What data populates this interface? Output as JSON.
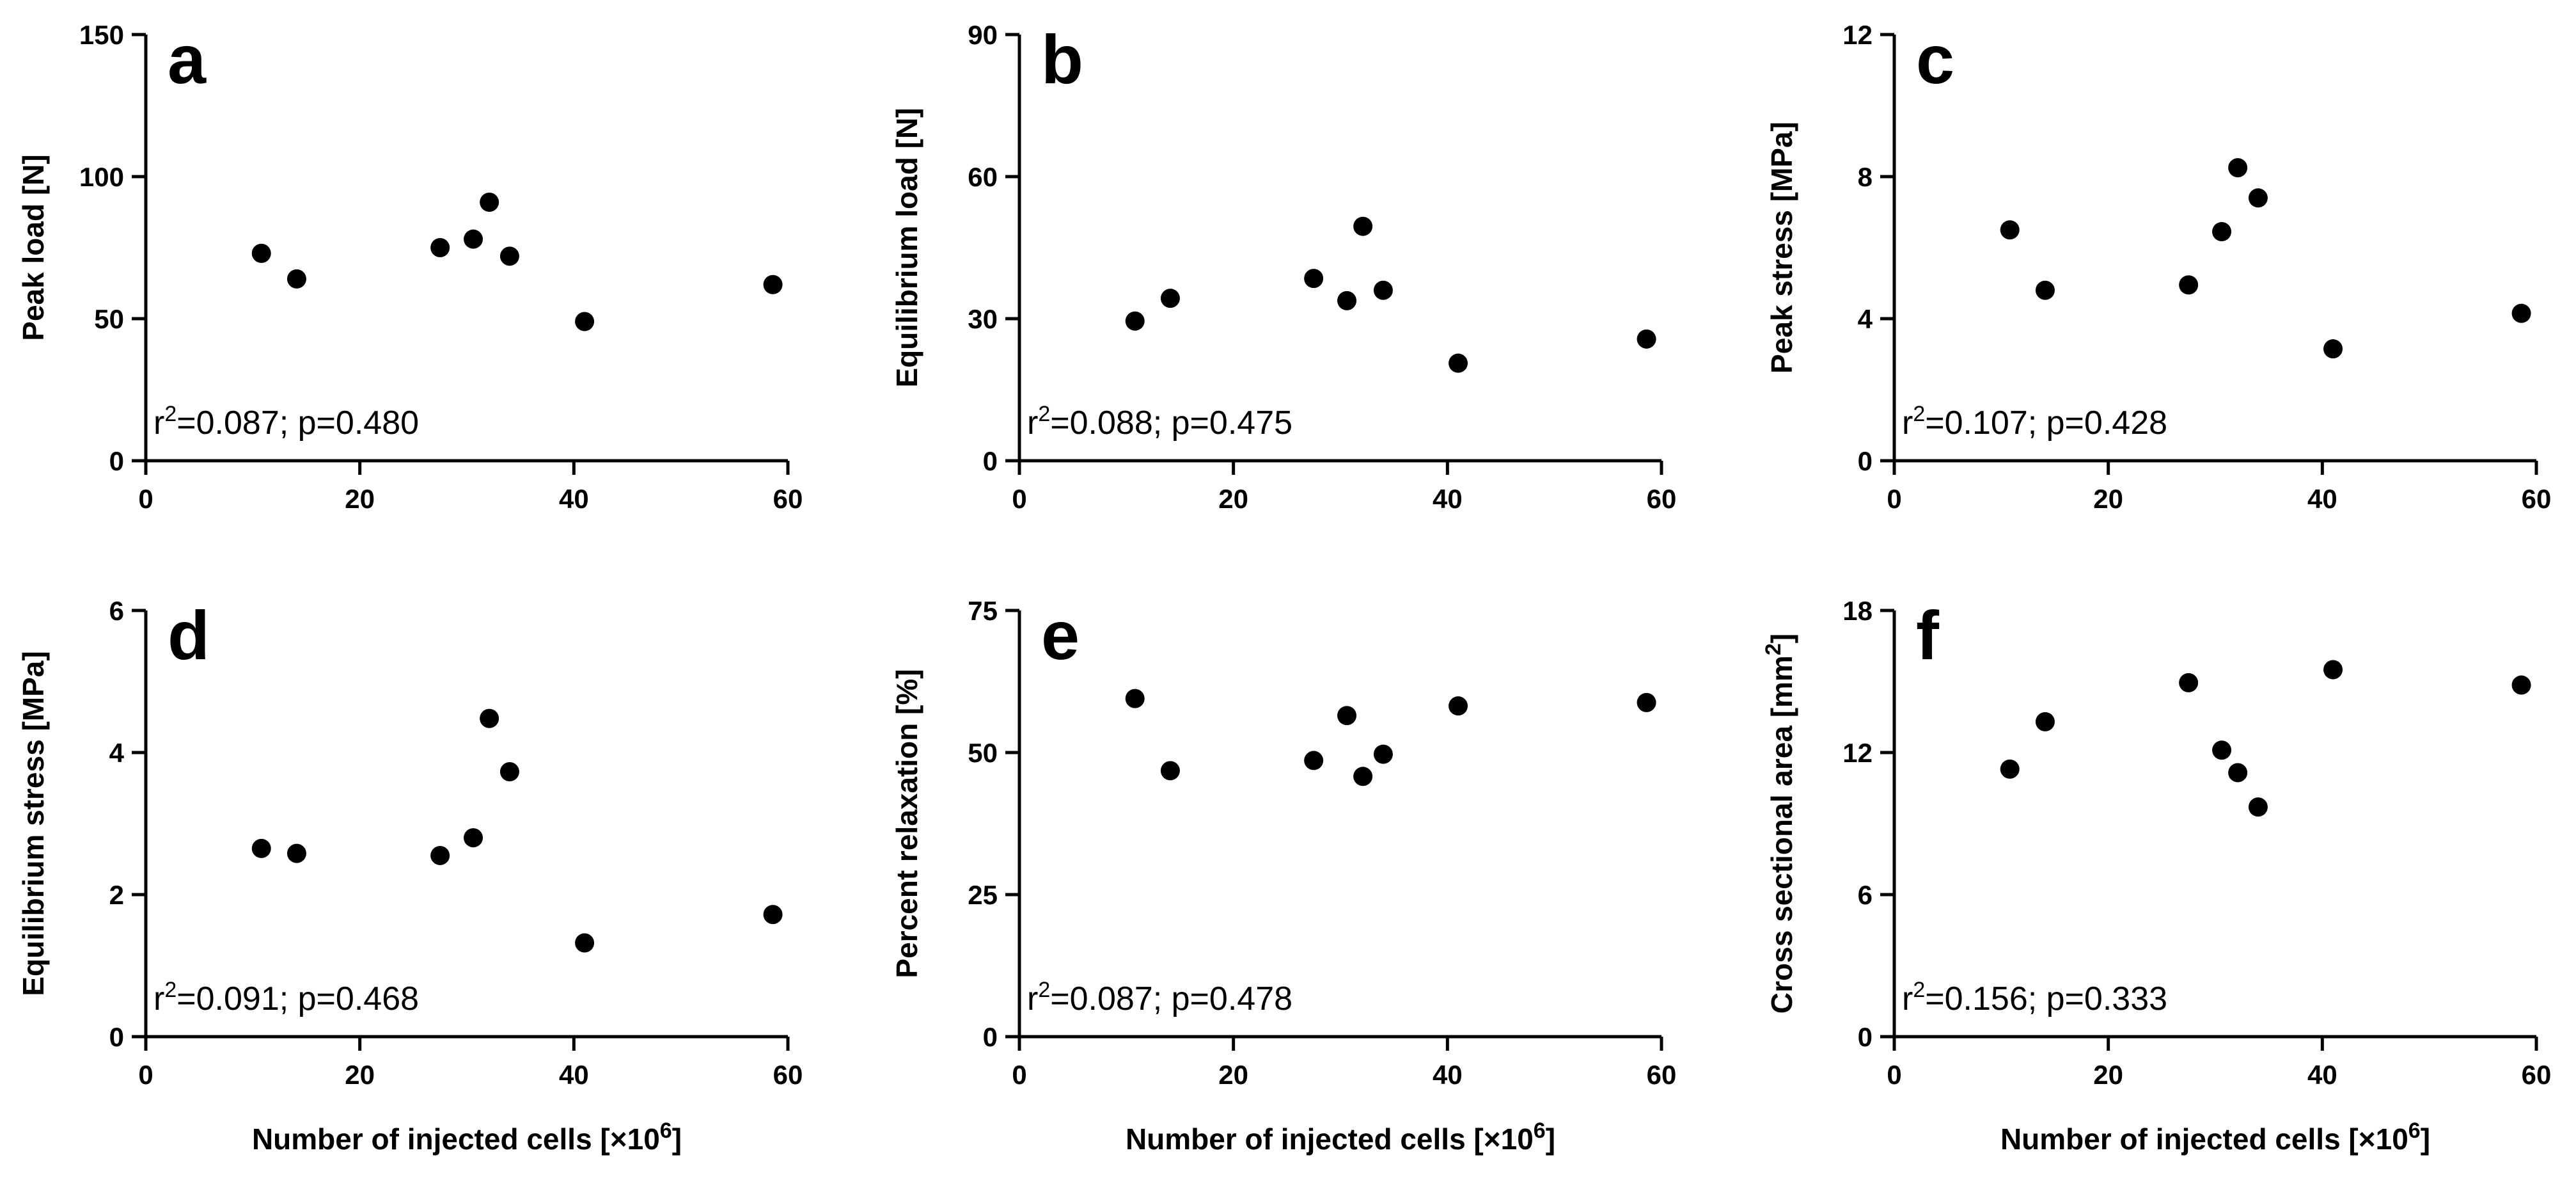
{
  "colors": {
    "background": "#ffffff",
    "ink": "#000000",
    "marker": "#000000"
  },
  "chart_data": [
    {
      "type": "scatter",
      "panel": "a",
      "ylabel": "Peak load [N]",
      "xlabel_text": "Number of injected cells [×10",
      "xlabel_sup": "6",
      "xlabel_tail": "]",
      "xlim": [
        0,
        60
      ],
      "xticks": [
        "0",
        "20",
        "40",
        "60"
      ],
      "ylim": [
        0,
        150
      ],
      "yticks": [
        "0",
        "50",
        "100",
        "150"
      ],
      "x": [
        10.8,
        14.1,
        27.5,
        30.6,
        32.1,
        34.0,
        41.0,
        58.6
      ],
      "y": [
        73,
        64,
        75,
        78,
        91,
        72,
        49,
        62
      ],
      "stat_r": "r",
      "stat_sup": "2",
      "stat_rest": "=0.087; p=0.480"
    },
    {
      "type": "scatter",
      "panel": "b",
      "ylabel": "Equilibrium load [N]",
      "xlabel_text": "Number of injected cells [×10",
      "xlabel_sup": "6",
      "xlabel_tail": "]",
      "xlim": [
        0,
        60
      ],
      "xticks": [
        "0",
        "20",
        "40",
        "60"
      ],
      "ylim": [
        0,
        90
      ],
      "yticks": [
        "0",
        "30",
        "60",
        "90"
      ],
      "x": [
        10.8,
        14.1,
        27.5,
        30.6,
        32.1,
        34.0,
        41.0,
        58.6
      ],
      "y": [
        29.5,
        34.3,
        38.5,
        33.8,
        49.5,
        36.0,
        20.6,
        25.7
      ],
      "stat_r": "r",
      "stat_sup": "2",
      "stat_rest": "=0.088; p=0.475"
    },
    {
      "type": "scatter",
      "panel": "c",
      "ylabel": "Peak stress [MPa]",
      "xlabel_text": "Number of injected cells [×10",
      "xlabel_sup": "6",
      "xlabel_tail": "]",
      "xlim": [
        0,
        60
      ],
      "xticks": [
        "0",
        "20",
        "40",
        "60"
      ],
      "ylim": [
        0,
        12
      ],
      "yticks": [
        "0",
        "4",
        "8",
        "12"
      ],
      "x": [
        10.8,
        14.1,
        27.5,
        30.6,
        32.1,
        34.0,
        41.0,
        58.6
      ],
      "y": [
        6.5,
        4.8,
        4.95,
        6.45,
        8.25,
        7.4,
        3.15,
        4.15
      ],
      "stat_r": "r",
      "stat_sup": "2",
      "stat_rest": "=0.107; p=0.428"
    },
    {
      "type": "scatter",
      "panel": "d",
      "ylabel": "Equilibrium stress [MPa]",
      "xlabel_text": "Number of injected cells [×10",
      "xlabel_sup": "6",
      "xlabel_tail": "]",
      "xlim": [
        0,
        60
      ],
      "xticks": [
        "0",
        "20",
        "40",
        "60"
      ],
      "ylim": [
        0,
        6
      ],
      "yticks": [
        "0",
        "2",
        "4",
        "6"
      ],
      "x": [
        10.8,
        14.1,
        27.5,
        30.6,
        32.1,
        34.0,
        41.0,
        58.6
      ],
      "y": [
        2.65,
        2.58,
        2.55,
        2.8,
        4.48,
        3.73,
        1.32,
        1.72
      ],
      "stat_r": "r",
      "stat_sup": "2",
      "stat_rest": "=0.091; p=0.468"
    },
    {
      "type": "scatter",
      "panel": "e",
      "ylabel": "Percent relaxation [%]",
      "xlabel_text": "Number of injected cells [×10",
      "xlabel_sup": "6",
      "xlabel_tail": "]",
      "xlim": [
        0,
        60
      ],
      "xticks": [
        "0",
        "20",
        "40",
        "60"
      ],
      "ylim": [
        0,
        75
      ],
      "yticks": [
        "0",
        "25",
        "50",
        "75"
      ],
      "x": [
        10.8,
        14.1,
        27.5,
        30.6,
        32.1,
        34.0,
        41.0,
        58.6
      ],
      "y": [
        59.5,
        46.8,
        48.6,
        56.5,
        45.8,
        49.7,
        58.2,
        58.8
      ],
      "stat_r": "r",
      "stat_sup": "2",
      "stat_rest": "=0.087; p=0.478"
    },
    {
      "type": "scatter",
      "panel": "f",
      "ylabel_text": "Cross sectional area [mm",
      "ylabel_sup": "2",
      "ylabel_tail": "]",
      "xlabel_text": "Number of injected cells [×10",
      "xlabel_sup": "6",
      "xlabel_tail": "]",
      "xlim": [
        0,
        60
      ],
      "xticks": [
        "0",
        "20",
        "40",
        "60"
      ],
      "ylim": [
        0,
        18
      ],
      "yticks": [
        "0",
        "6",
        "12",
        "18"
      ],
      "x": [
        10.8,
        14.1,
        27.5,
        30.6,
        32.1,
        34.0,
        41.0,
        58.6
      ],
      "y": [
        11.3,
        13.3,
        14.95,
        12.1,
        11.15,
        9.7,
        15.5,
        14.85
      ],
      "stat_r": "r",
      "stat_sup": "2",
      "stat_rest": "=0.156; p=0.333"
    }
  ]
}
